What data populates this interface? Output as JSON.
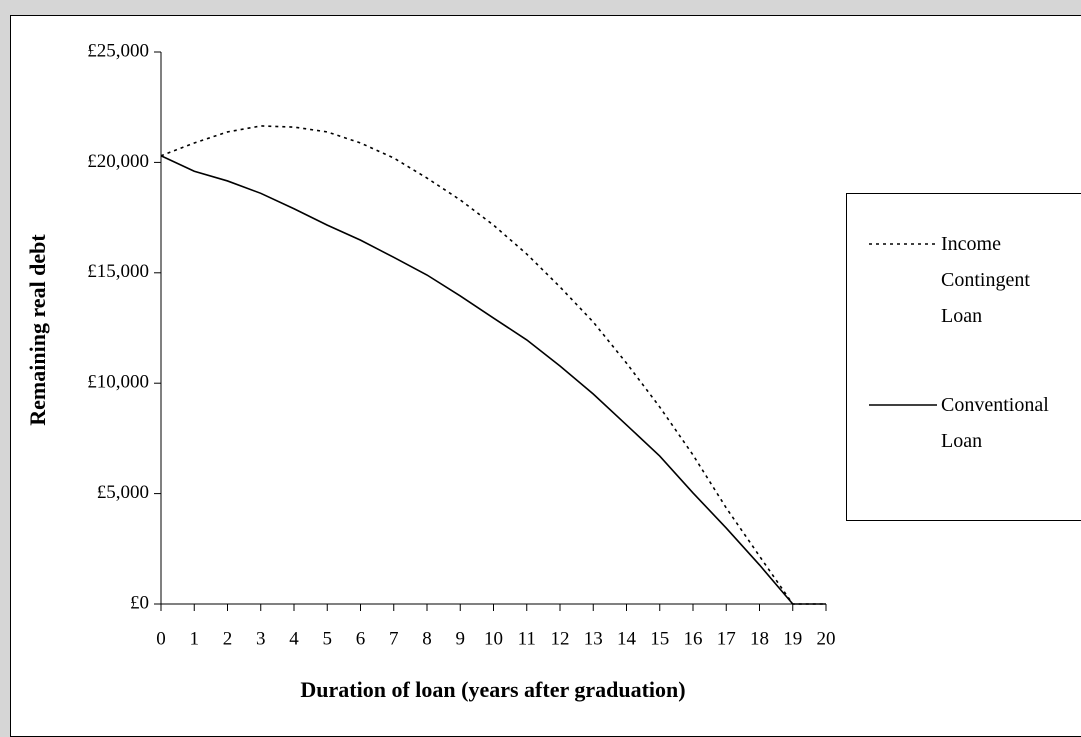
{
  "chart_data": {
    "type": "line",
    "x_label": "Duration of loan (years after graduation)",
    "y_label": "Remaining real debt",
    "x": [
      0,
      1,
      2,
      3,
      4,
      5,
      6,
      7,
      8,
      9,
      10,
      11,
      12,
      13,
      14,
      15,
      16,
      17,
      18,
      19,
      20
    ],
    "xlim": [
      0,
      20
    ],
    "xticks": [
      0,
      1,
      2,
      3,
      4,
      5,
      6,
      7,
      8,
      9,
      10,
      11,
      12,
      13,
      14,
      15,
      16,
      17,
      18,
      19,
      20
    ],
    "ylim": [
      0,
      25000
    ],
    "yticks": [
      {
        "value": 0,
        "label": "£0"
      },
      {
        "value": 5000,
        "label": "£5,000"
      },
      {
        "value": 10000,
        "label": "£10,000"
      },
      {
        "value": 15000,
        "label": "£15,000"
      },
      {
        "value": 20000,
        "label": "£20,000"
      },
      {
        "value": 25000,
        "label": "£25,000"
      }
    ],
    "legend": "right",
    "series": [
      {
        "name": "Income Contingent Loan",
        "color": "#000000",
        "dash": "dotted",
        "values": [
          20300,
          20880,
          21380,
          21650,
          21600,
          21380,
          20880,
          20200,
          19290,
          18300,
          17160,
          15850,
          14360,
          12770,
          10910,
          8920,
          6750,
          4350,
          2170,
          0,
          0
        ]
      },
      {
        "name": "Conventional Loan",
        "color": "#000000",
        "dash": "solid",
        "values": [
          20300,
          19600,
          19160,
          18600,
          17900,
          17160,
          16480,
          15700,
          14900,
          13950,
          12950,
          11960,
          10780,
          9510,
          8110,
          6700,
          5030,
          3440,
          1770,
          0,
          0
        ]
      }
    ]
  }
}
